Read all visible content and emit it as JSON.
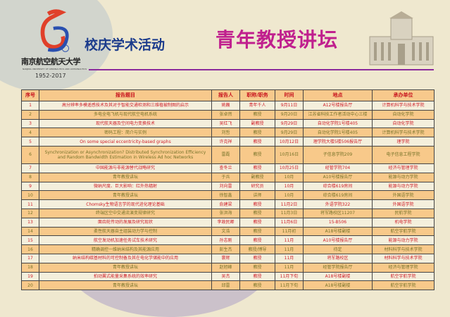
{
  "header": {
    "school_name": "南京航空航天大学",
    "school_name_en": "NANJING UNIVERSITY OF AERONAUTICS AND ASTRONAUTICS",
    "years": "1952-2017",
    "logo_number": "65",
    "subtitle": "校庆学术活动",
    "title": "青年教授讲坛"
  },
  "colors": {
    "title": "#c0208e",
    "subtitle": "#1b3b8c",
    "header_bg": "#f7c98c",
    "odd_text": "#d0202a",
    "even_text": "#77742a"
  },
  "table": {
    "columns": [
      "序号",
      "报告题目",
      "报告人",
      "职称/职务",
      "时间",
      "地点",
      "承办单位"
    ],
    "rows": [
      [
        "1",
        "高分辨率多模遥感技术及其对于智能交通检测和三维植被制图的启示",
        "姚巍",
        "青年千人",
        "9月11日",
        "A12号楼报告厅",
        "计算机科学与技术学院"
      ],
      [
        "2",
        "多电全电飞机与现代航空电机系统",
        "张卓然",
        "教授",
        "9月20日",
        "江苏省科技工作者活动中心三楼",
        "自动化学院"
      ],
      [
        "3",
        "现代航天器及空间电力变换技术",
        "吴红飞",
        "副教授",
        "9月29日",
        "自动化学院1号楼405",
        "自动化学院"
      ],
      [
        "4",
        "密码工程：简介与实例",
        "刘哲",
        "教授",
        "9月29日",
        "自动化学院1号楼405",
        "计算机科学与技术学院"
      ],
      [
        "5",
        "On some special eccentricity-based graphs",
        "许克祥",
        "教授",
        "10月12日",
        "理学院大楼5楼506报告厅",
        "理学院"
      ],
      [
        "6",
        "Synchronization or Asynchronization? Distributed Synchronization Efficiency and Random Bandwidth Estimation in Wireless Ad hoc Networks",
        "雷磊",
        "教授",
        "10月16日",
        "子信息学院209",
        "电子信息工程学院"
      ],
      [
        "7",
        "中国能源与非能源替代战略研究",
        "查冬兰",
        "教授",
        "10月25日",
        "经管学院704",
        "经济与管理学院"
      ],
      [
        "8",
        "青年教授讲坛",
        "于兵",
        "副教授",
        "10月",
        "A10号楼报告厅",
        "能源与动力学院"
      ],
      [
        "9",
        "微纳尺度、巨大影响：红外热辐射",
        "刘向雷",
        "研究员",
        "10月",
        "综合楼619房间",
        "能源与动力学院"
      ],
      [
        "10",
        "青年教授讲坛",
        "徐智鑫",
        "讲师",
        "10月",
        "综合楼619房间",
        "外国语学院"
      ],
      [
        "11",
        "Chomsky生物语言学的现代进化理论基础",
        "俞建梁",
        "教授",
        "11月2日",
        "外语学院322",
        "外国语学院"
      ],
      [
        "12",
        "终端区空中交通流演变规律研究",
        "张洪海",
        "教授",
        "11月3日",
        "将军路校区11207",
        "民航学院"
      ],
      [
        "13",
        "面齿轮传动的发展及研究现状",
        "李政民卿",
        "教授",
        "11月6日",
        "15-B506",
        "机电学院"
      ],
      [
        "14",
        "柔性航天器自主组装动力学与控制",
        "文浩",
        "教授",
        "11月初",
        "A18号楼副楼",
        "航空宇航学院"
      ],
      [
        "15",
        "航空发动机加速任务试车技术研究",
        "孙志刚",
        "教授",
        "11月",
        "A10号楼报告厅",
        "能源与动力学院"
      ],
      [
        "16",
        "精确调控一维纳米结构及其能源应用",
        "彭生杰",
        "教授/博导",
        "11月",
        "待定",
        "材料科学与技术学院"
      ],
      [
        "17",
        "纳米结构碳基材料的可控制备及其在电化学储能中的应用",
        "寰辉",
        "教授",
        "11月",
        "将军路校区",
        "材料科学与技术学院"
      ],
      [
        "18",
        "青年教授讲坛",
        "赵旭峰",
        "教授",
        "11月",
        "经管学院报告厅",
        "经济与管理学院"
      ],
      [
        "19",
        "拍动翼式能量采集系统的效率研究",
        "吴杰",
        "教授",
        "11月下旬",
        "A18号楼副楼",
        "航空宇航学院"
      ],
      [
        "20",
        "青年教授讲坛",
        "邱雷",
        "教授",
        "11月下旬",
        "A18号楼副楼",
        "航空宇航学院"
      ]
    ]
  }
}
